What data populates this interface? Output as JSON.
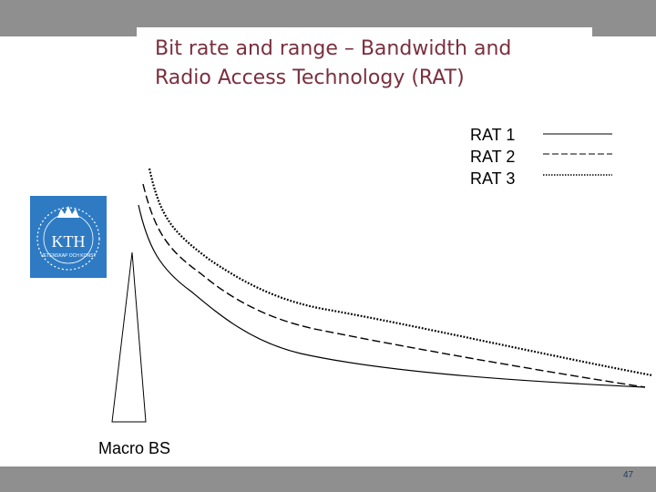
{
  "slide": {
    "title_line1": "Bit rate and range – Bandwidth and",
    "title_line2": "Radio Access Technology (RAT)",
    "page_number": "47"
  },
  "logo": {
    "text": "KTH",
    "ring_text": "VETENSKAP OCH KONST",
    "color": "#2e7bc4"
  },
  "legend": [
    {
      "label": "RAT 1",
      "line_style": "solid"
    },
    {
      "label": "RAT 2",
      "line_style": "dashed"
    },
    {
      "label": "RAT 3",
      "line_style": "dotted"
    }
  ],
  "base_station": {
    "label": "Macro BS"
  },
  "colors": {
    "title": "#7a2f3f",
    "band": "#8f8f8f",
    "logo": "#2e7bc4"
  }
}
